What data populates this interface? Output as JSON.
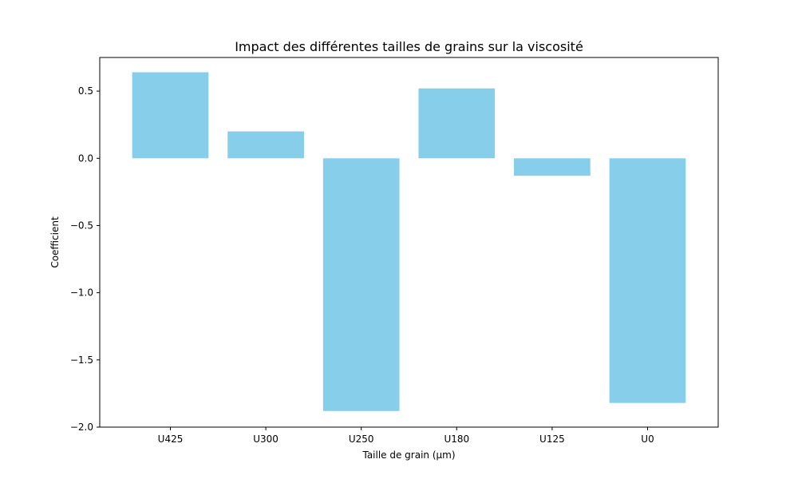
{
  "chart_data": {
    "type": "bar",
    "title": "Impact des différentes tailles de grains sur la viscosité",
    "xlabel": "Taille de grain (µm)",
    "ylabel": "Coefficient",
    "categories": [
      "U425",
      "U300",
      "U250",
      "U180",
      "U125",
      "U0"
    ],
    "values": [
      0.64,
      0.2,
      -1.88,
      0.52,
      -0.13,
      -1.82
    ],
    "ylim": [
      -2.0,
      0.75
    ],
    "yticks": [
      0.5,
      0.0,
      -0.5,
      -1.0,
      -1.5,
      -2.0
    ],
    "ytick_labels": [
      "0.5",
      "0.0",
      "−0.5",
      "−1.0",
      "−1.5",
      "−2.0"
    ],
    "bar_color": "#87ceeb",
    "grid": false,
    "legend": false
  }
}
